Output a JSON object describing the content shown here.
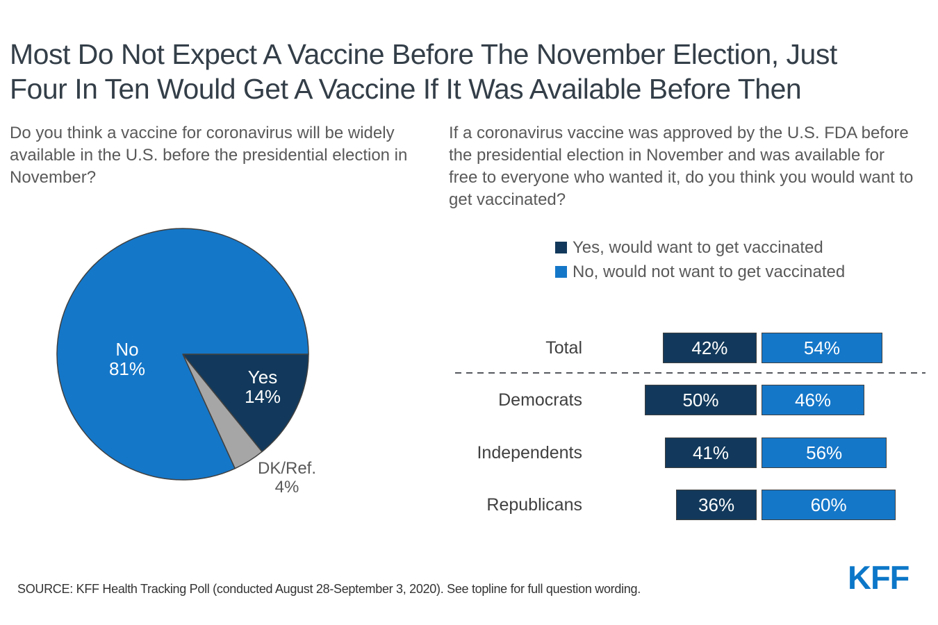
{
  "title_line1": "Most Do Not Expect A Vaccine Before The November Election, Just",
  "title_line2": "Four In Ten Would Get A Vaccine If It Was Available Before Then",
  "left_panel": {
    "question": "Do you think a vaccine for coronavirus will be widely available in the U.S. before the presidential election in November?"
  },
  "right_panel": {
    "question": "If a coronavirus vaccine was approved by the U.S. FDA before the presidential election in November and was available for free to everyone who wanted it, do you think you would want to get vaccinated?",
    "legend": [
      {
        "label": "Yes, would want to get vaccinated",
        "color": "#12395b"
      },
      {
        "label": "No, would not want to get vaccinated",
        "color": "#1577c8"
      }
    ]
  },
  "colors": {
    "dark_navy": "#12395b",
    "light_blue": "#1577c8",
    "gray_slice": "#a6a6a6",
    "outline": "#404040",
    "kff_blue": "#0c77c8"
  },
  "chart_data": [
    {
      "type": "pie",
      "question": "Do you think a vaccine for coronavirus will be widely available in the U.S. before the presidential election in November?",
      "start_angle_deg": 0,
      "direction": "clockwise",
      "slices": [
        {
          "label": "Yes",
          "value": 14,
          "display": "14%",
          "color": "#12395b",
          "label_color": "#ffffff"
        },
        {
          "label": "DK/Ref.",
          "value": 4,
          "display": "4%",
          "color": "#a6a6a6",
          "label_color": "#595959"
        },
        {
          "label": "No",
          "value": 81,
          "display": "81%",
          "color": "#1577c8",
          "label_color": "#ffffff"
        }
      ]
    },
    {
      "type": "bar",
      "orientation": "horizontal-stacked",
      "question": "If a coronavirus vaccine was approved by the U.S. FDA before the presidential election in November and was available for free to everyone who wanted it, do you think you would want to get vaccinated?",
      "categories": [
        "Total",
        "Democrats",
        "Independents",
        "Republicans"
      ],
      "series": [
        {
          "name": "Yes, would want to get vaccinated",
          "color": "#12395b",
          "values": [
            42,
            50,
            41,
            36
          ],
          "displays": [
            "42%",
            "50%",
            "41%",
            "36%"
          ]
        },
        {
          "name": "No, would not want to get vaccinated",
          "color": "#1577c8",
          "values": [
            54,
            46,
            56,
            60
          ],
          "displays": [
            "54%",
            "46%",
            "56%",
            "60%"
          ]
        }
      ],
      "value_suffix": "%",
      "legend_position": "top"
    }
  ],
  "footer": {
    "source": "SOURCE: KFF Health Tracking Poll (conducted August 28-September 3, 2020). See topline for full question wording.",
    "logo": "KFF"
  }
}
